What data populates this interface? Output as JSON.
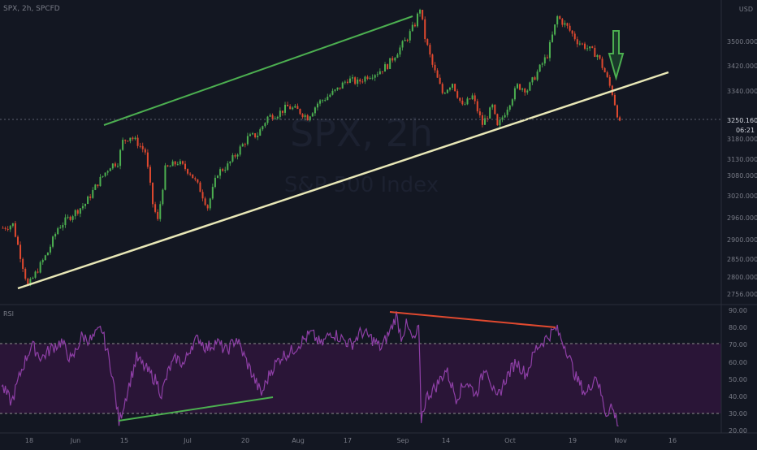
{
  "header": {
    "symbol_line": "SPX, 2h, SPCFD"
  },
  "watermark": {
    "symbol": "SPX, 2h",
    "name": "S&P 500 Index"
  },
  "currency": "USD",
  "price_axis": {
    "ticks": [
      "3500.0000",
      "3420.0000",
      "3340.0000",
      "3250.1600",
      "3180.0000",
      "3130.0000",
      "3080.0000",
      "3020.0000",
      "2960.0000",
      "2900.0000",
      "2850.0000",
      "2800.0000",
      "2756.0000"
    ],
    "last_price": "3250.1600",
    "countdown": "06:21"
  },
  "rsi_panel": {
    "label": "RSI",
    "ticks": [
      "90.00",
      "80.00",
      "70.00",
      "60.00",
      "50.00",
      "40.00",
      "30.00",
      "20.00"
    ]
  },
  "time_axis": {
    "labels": [
      "18",
      "Jun",
      "15",
      "Jul",
      "20",
      "Aug",
      "17",
      "Sep",
      "14",
      "Oct",
      "19",
      "Nov",
      "16"
    ]
  },
  "chart_data": [
    {
      "type": "candlestick",
      "title": "SPX, 2h",
      "subtitle": "S&P 500 Index",
      "ylim": [
        2740,
        3590
      ],
      "anchors": [
        [
          0,
          2950
        ],
        [
          4,
          2960
        ],
        [
          7,
          2870
        ],
        [
          10,
          2780
        ],
        [
          14,
          2830
        ],
        [
          18,
          2880
        ],
        [
          22,
          2950
        ],
        [
          28,
          2990
        ],
        [
          33,
          3020
        ],
        [
          38,
          3080
        ],
        [
          43,
          3130
        ],
        [
          46,
          3140
        ],
        [
          48,
          3200
        ],
        [
          51,
          3215
        ],
        [
          54,
          3195
        ],
        [
          57,
          3170
        ],
        [
          60,
          3020
        ],
        [
          62,
          2970
        ],
        [
          65,
          3120
        ],
        [
          70,
          3140
        ],
        [
          75,
          3110
        ],
        [
          79,
          3060
        ],
        [
          82,
          3010
        ],
        [
          86,
          3110
        ],
        [
          90,
          3130
        ],
        [
          94,
          3170
        ],
        [
          98,
          3210
        ],
        [
          102,
          3220
        ],
        [
          106,
          3270
        ],
        [
          110,
          3280
        ],
        [
          114,
          3300
        ],
        [
          118,
          3290
        ],
        [
          122,
          3270
        ],
        [
          126,
          3310
        ],
        [
          130,
          3330
        ],
        [
          134,
          3350
        ],
        [
          138,
          3380
        ],
        [
          142,
          3370
        ],
        [
          146,
          3390
        ],
        [
          150,
          3400
        ],
        [
          154,
          3420
        ],
        [
          158,
          3460
        ],
        [
          162,
          3500
        ],
        [
          165,
          3540
        ],
        [
          167,
          3586
        ],
        [
          169,
          3500
        ],
        [
          172,
          3420
        ],
        [
          176,
          3340
        ],
        [
          180,
          3370
        ],
        [
          184,
          3300
        ],
        [
          188,
          3330
        ],
        [
          192,
          3250
        ],
        [
          196,
          3300
        ],
        [
          198,
          3240
        ],
        [
          202,
          3300
        ],
        [
          206,
          3360
        ],
        [
          210,
          3350
        ],
        [
          214,
          3400
        ],
        [
          218,
          3450
        ],
        [
          222,
          3560
        ],
        [
          226,
          3530
        ],
        [
          230,
          3490
        ],
        [
          234,
          3470
        ],
        [
          238,
          3450
        ],
        [
          241,
          3400
        ],
        [
          244,
          3340
        ],
        [
          247,
          3250
        ]
      ]
    },
    {
      "type": "line",
      "title": "RSI",
      "ylim": [
        18,
        92
      ],
      "anchors": [
        [
          0,
          45
        ],
        [
          4,
          35
        ],
        [
          8,
          55
        ],
        [
          12,
          70
        ],
        [
          16,
          62
        ],
        [
          20,
          68
        ],
        [
          24,
          72
        ],
        [
          28,
          60
        ],
        [
          32,
          75
        ],
        [
          36,
          73
        ],
        [
          40,
          80
        ],
        [
          44,
          55
        ],
        [
          47,
          23
        ],
        [
          50,
          40
        ],
        [
          54,
          62
        ],
        [
          58,
          55
        ],
        [
          62,
          48
        ],
        [
          64,
          40
        ],
        [
          67,
          55
        ],
        [
          70,
          62
        ],
        [
          73,
          58
        ],
        [
          76,
          70
        ],
        [
          79,
          74
        ],
        [
          82,
          68
        ],
        [
          86,
          72
        ],
        [
          90,
          66
        ],
        [
          94,
          74
        ],
        [
          98,
          60
        ],
        [
          101,
          50
        ],
        [
          104,
          40
        ],
        [
          108,
          55
        ],
        [
          112,
          63
        ],
        [
          116,
          66
        ],
        [
          120,
          72
        ],
        [
          124,
          77
        ],
        [
          128,
          70
        ],
        [
          132,
          78
        ],
        [
          136,
          74
        ],
        [
          140,
          70
        ],
        [
          144,
          78
        ],
        [
          148,
          74
        ],
        [
          152,
          68
        ],
        [
          156,
          80
        ],
        [
          158,
          88
        ],
        [
          160,
          75
        ],
        [
          162,
          82
        ],
        [
          165,
          72
        ],
        [
          167,
          80
        ],
        [
          168,
          25
        ],
        [
          170,
          38
        ],
        [
          174,
          45
        ],
        [
          178,
          55
        ],
        [
          182,
          38
        ],
        [
          186,
          48
        ],
        [
          190,
          40
        ],
        [
          194,
          58
        ],
        [
          198,
          36
        ],
        [
          202,
          50
        ],
        [
          206,
          60
        ],
        [
          210,
          52
        ],
        [
          214,
          68
        ],
        [
          218,
          74
        ],
        [
          222,
          80
        ],
        [
          226,
          68
        ],
        [
          230,
          50
        ],
        [
          234,
          40
        ],
        [
          238,
          52
        ],
        [
          242,
          28
        ],
        [
          244,
          33
        ],
        [
          247,
          22
        ]
      ],
      "levels": [
        70,
        30
      ]
    }
  ]
}
